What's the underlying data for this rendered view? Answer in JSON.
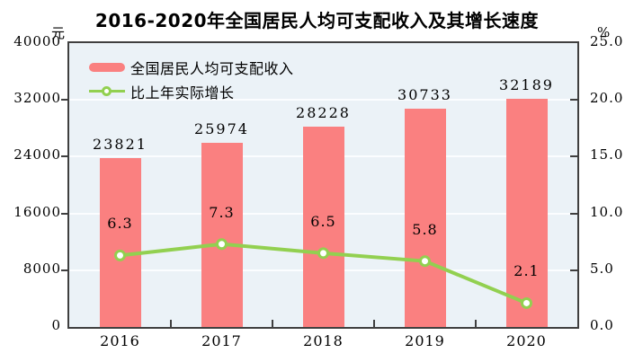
{
  "chart_data": {
    "type": "bar+line",
    "title": "2016-2020年全国居民人均可支配收入及其增长速度",
    "categories": [
      "2016",
      "2017",
      "2018",
      "2019",
      "2020"
    ],
    "series": [
      {
        "name": "全国居民人均可支配收入",
        "type": "bar",
        "axis": "left",
        "color": "#fa8080",
        "values": [
          23821,
          25974,
          28228,
          30733,
          32189
        ]
      },
      {
        "name": "比上年实际增长",
        "type": "line",
        "axis": "right",
        "color": "#92d050",
        "marker": "circle-white-fill",
        "values": [
          6.3,
          7.3,
          6.5,
          5.8,
          2.1
        ]
      }
    ],
    "left_axis": {
      "unit": "元",
      "min": 0,
      "max": 40000,
      "ticks": [
        0,
        8000,
        16000,
        24000,
        32000,
        40000
      ]
    },
    "right_axis": {
      "unit": "%",
      "min": 0,
      "max": 25,
      "ticks": [
        "0.0",
        "5.0",
        "10.0",
        "15.0",
        "20.0",
        "25.0"
      ]
    },
    "legend_position": "top-left-inside",
    "grid": true,
    "colors": {
      "plot_background": "#ebf2f7",
      "gridline": "#fbfdff",
      "axis_frame": "#3f3f3f",
      "text": "#000000"
    }
  }
}
